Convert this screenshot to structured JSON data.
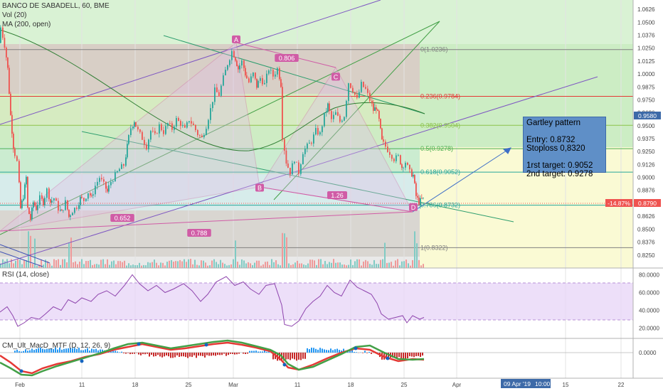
{
  "header": {
    "symbol_line": "BANCO DE SABADELL, 60, BME",
    "vol_line": "Vol (20)",
    "ma_line": "MA (200, open)",
    "rsi_line": "RSI (14, close)",
    "macd_line": "CM_Ult_MacD_MTF (D, 12, 26, 9)"
  },
  "note": {
    "title": "Gartley pattern",
    "entry": "Entry: 0.8732",
    "stop": "Stoploss 0,8320",
    "target1": "1rst target: 0.9052",
    "target2": "2nd target: 0.9278"
  },
  "price_axis": {
    "ticks": [
      "1.0626",
      "1.0500",
      "1.0376",
      "1.0250",
      "1.0125",
      "1.0000",
      "0.9875",
      "0.9750",
      "0.9626",
      "0.9500",
      "0.9375",
      "0.9250",
      "0.9126",
      "0.9000",
      "0.8876",
      "0.8750",
      "0.8626",
      "0.8500",
      "0.8376",
      "0.8250"
    ],
    "current_price": "0.9580",
    "last_price": "0.8790",
    "last_change": "-14.87%",
    "current_color": "#3d6aa8",
    "last_color": "#ef5350"
  },
  "rsi_axis": {
    "ticks": [
      "80.0000",
      "60.0000",
      "40.0000",
      "20.0000"
    ]
  },
  "macd_axis": {
    "ticks": [
      "0.0000"
    ]
  },
  "time_axis": {
    "ticks": [
      "Feb",
      "11",
      "18",
      "25",
      "Mar",
      "11",
      "18",
      "25",
      "Apr",
      "15",
      "22"
    ],
    "cursor_label": "09 Apr '19",
    "cursor_time": "10:00"
  },
  "fib_levels": [
    {
      "label": "0(1.0236)",
      "value": 1.0236,
      "color": "#808080"
    },
    {
      "label": "0.236(0.9784)",
      "value": 0.9784,
      "color": "#e53935"
    },
    {
      "label": "0.382(0.9504)",
      "value": 0.9504,
      "color": "#8bc34a"
    },
    {
      "label": "0.5(0.9278)",
      "value": 0.9278,
      "color": "#4caf50"
    },
    {
      "label": "0.618(0.9052)",
      "value": 0.9052,
      "color": "#26a69a"
    },
    {
      "label": "0.786(0.8732)",
      "value": 0.8732,
      "color": "#26a69a"
    },
    {
      "label": "1(0.8322)",
      "value": 0.8322,
      "color": "#808080"
    }
  ],
  "pattern_points": [
    {
      "label": "A",
      "value": 1.0276
    },
    {
      "label": "B",
      "value": 0.8905
    },
    {
      "label": "C",
      "value": 0.9929
    },
    {
      "label": "D",
      "value": 0.8745
    }
  ],
  "pattern_ratios": [
    "0.806",
    "1.26",
    "0.652",
    "0.788"
  ],
  "chart_data": {
    "type": "candlestick",
    "title": "BANCO DE SABADELL, 60, BME",
    "ylim": [
      0.818,
      1.066
    ],
    "x_ticks": [
      "Feb",
      "11",
      "18",
      "25",
      "Mar",
      "11",
      "18",
      "25",
      "Apr",
      "15",
      "22"
    ],
    "price_path": [
      [
        0,
        1.03
      ],
      [
        3,
        1.045
      ],
      [
        8,
        1.028
      ],
      [
        12,
        1.005
      ],
      [
        16,
        0.96
      ],
      [
        20,
        0.93
      ],
      [
        26,
        0.915
      ],
      [
        30,
        0.87
      ],
      [
        34,
        0.882
      ],
      [
        38,
        0.9
      ],
      [
        40,
        0.87
      ],
      [
        44,
        0.86
      ],
      [
        48,
        0.876
      ],
      [
        52,
        0.87
      ],
      [
        58,
        0.88
      ],
      [
        62,
        0.876
      ],
      [
        68,
        0.888
      ],
      [
        72,
        0.876
      ],
      [
        78,
        0.88
      ],
      [
        84,
        0.87
      ],
      [
        88,
        0.866
      ],
      [
        94,
        0.876
      ],
      [
        98,
        0.862
      ],
      [
        104,
        0.868
      ],
      [
        110,
        0.872
      ],
      [
        114,
        0.88
      ],
      [
        120,
        0.878
      ],
      [
        126,
        0.886
      ],
      [
        130,
        0.88
      ],
      [
        136,
        0.892
      ],
      [
        142,
        0.9
      ],
      [
        148,
        0.893
      ],
      [
        152,
        0.886
      ],
      [
        158,
        0.896
      ],
      [
        164,
        0.902
      ],
      [
        170,
        0.908
      ],
      [
        176,
        0.912
      ],
      [
        180,
        0.93
      ],
      [
        186,
        0.948
      ],
      [
        190,
        0.955
      ],
      [
        196,
        0.945
      ],
      [
        202,
        0.938
      ],
      [
        208,
        0.93
      ],
      [
        214,
        0.945
      ],
      [
        220,
        0.94
      ],
      [
        226,
        0.95
      ],
      [
        232,
        0.944
      ],
      [
        238,
        0.952
      ],
      [
        244,
        0.947
      ],
      [
        250,
        0.956
      ],
      [
        256,
        0.952
      ],
      [
        262,
        0.946
      ],
      [
        268,
        0.956
      ],
      [
        274,
        0.95
      ],
      [
        280,
        0.942
      ],
      [
        286,
        0.938
      ],
      [
        292,
        0.95
      ],
      [
        298,
        0.966
      ],
      [
        304,
        0.984
      ],
      [
        310,
        0.98
      ],
      [
        316,
        0.996
      ],
      [
        322,
        1.01
      ],
      [
        328,
        1.022
      ],
      [
        332,
        1.015
      ],
      [
        336,
        1.005
      ],
      [
        342,
        1.012
      ],
      [
        346,
        1.0
      ],
      [
        352,
        0.992
      ],
      [
        358,
        1.0
      ],
      [
        362,
        0.988
      ],
      [
        368,
        0.996
      ],
      [
        374,
        0.99
      ],
      [
        380,
        1.005
      ],
      [
        386,
        0.998
      ],
      [
        392,
        1.005
      ],
      [
        396,
        0.99
      ],
      [
        399,
        0.94
      ],
      [
        404,
        0.915
      ],
      [
        410,
        0.905
      ],
      [
        416,
        0.918
      ],
      [
        422,
        0.905
      ],
      [
        428,
        0.925
      ],
      [
        434,
        0.93
      ],
      [
        440,
        0.935
      ],
      [
        446,
        0.945
      ],
      [
        452,
        0.942
      ],
      [
        458,
        0.96
      ],
      [
        462,
        0.97
      ],
      [
        468,
        0.956
      ],
      [
        474,
        0.962
      ],
      [
        480,
        0.954
      ],
      [
        486,
        0.96
      ],
      [
        492,
        0.992
      ],
      [
        498,
        0.985
      ],
      [
        504,
        0.975
      ],
      [
        510,
        0.99
      ],
      [
        516,
        0.985
      ],
      [
        522,
        0.975
      ],
      [
        526,
        0.965
      ],
      [
        530,
        0.968
      ],
      [
        534,
        0.955
      ],
      [
        538,
        0.935
      ],
      [
        544,
        0.93
      ],
      [
        550,
        0.924
      ],
      [
        556,
        0.918
      ],
      [
        562,
        0.92
      ],
      [
        566,
        0.91
      ],
      [
        572,
        0.915
      ],
      [
        578,
        0.905
      ],
      [
        582,
        0.902
      ],
      [
        586,
        0.882
      ],
      [
        590,
        0.876
      ],
      [
        594,
        0.879
      ],
      [
        596,
        0.879
      ]
    ],
    "fib_retracement": {
      "from": 1.0236,
      "to": 0.8322
    }
  }
}
